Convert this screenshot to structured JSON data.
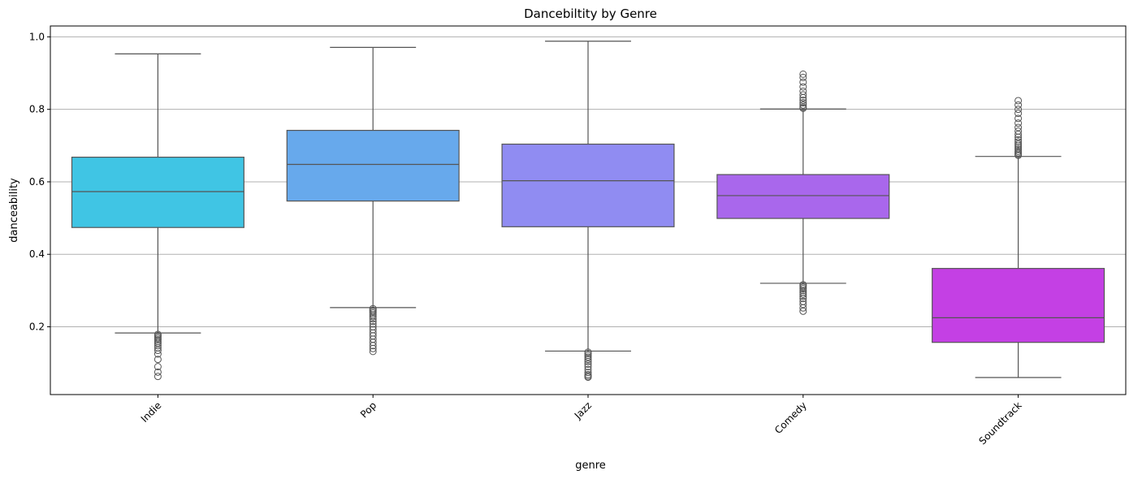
{
  "chart_data": {
    "type": "box",
    "title": "Dancebiltity by Genre",
    "xlabel": "genre",
    "ylabel": "danceability",
    "ylim": [
      0.013,
      1.03
    ],
    "yticks": [
      0.2,
      0.4,
      0.6,
      0.8,
      1.0
    ],
    "ytick_labels": [
      "0.2",
      "0.4",
      "0.6",
      "0.8",
      "1.0"
    ],
    "grid": "y",
    "categories": [
      "Indie",
      "Pop",
      "Jazz",
      "Comedy",
      "Soundtrack"
    ],
    "boxes": [
      {
        "category": "Indie",
        "color": "#40c5e4",
        "whisker_low": 0.183,
        "q1": 0.474,
        "median": 0.573,
        "q3": 0.668,
        "whisker_high": 0.953,
        "outliers": [
          0.179,
          0.176,
          0.172,
          0.168,
          0.164,
          0.159,
          0.154,
          0.148,
          0.142,
          0.135,
          0.125,
          0.11,
          0.09,
          0.075,
          0.063
        ]
      },
      {
        "category": "Pop",
        "color": "#67a9ec",
        "whisker_low": 0.253,
        "q1": 0.547,
        "median": 0.648,
        "q3": 0.742,
        "whisker_high": 0.971,
        "outliers": [
          0.25,
          0.246,
          0.242,
          0.238,
          0.233,
          0.228,
          0.222,
          0.215,
          0.208,
          0.2,
          0.192,
          0.183,
          0.175,
          0.166,
          0.157,
          0.148,
          0.14,
          0.132
        ]
      },
      {
        "category": "Jazz",
        "color": "#908cf2",
        "whisker_low": 0.133,
        "q1": 0.476,
        "median": 0.603,
        "q3": 0.704,
        "whisker_high": 0.988,
        "outliers": [
          0.13,
          0.126,
          0.121,
          0.116,
          0.11,
          0.104,
          0.097,
          0.09,
          0.082,
          0.074,
          0.068,
          0.064,
          0.061
        ]
      },
      {
        "category": "Comedy",
        "color": "#a967ec",
        "whisker_low": 0.32,
        "q1": 0.499,
        "median": 0.562,
        "q3": 0.62,
        "whisker_high": 0.801,
        "outliers": [
          0.897,
          0.888,
          0.875,
          0.862,
          0.85,
          0.84,
          0.832,
          0.825,
          0.818,
          0.812,
          0.806,
          0.803,
          0.316,
          0.313,
          0.309,
          0.305,
          0.3,
          0.295,
          0.29,
          0.284,
          0.278,
          0.27,
          0.262,
          0.252,
          0.243
        ]
      },
      {
        "category": "Soundtrack",
        "color": "#c440e4",
        "whisker_low": 0.06,
        "q1": 0.157,
        "median": 0.225,
        "q3": 0.361,
        "whisker_high": 0.67,
        "outliers": [
          0.824,
          0.812,
          0.8,
          0.789,
          0.775,
          0.762,
          0.75,
          0.74,
          0.731,
          0.723,
          0.716,
          0.71,
          0.704,
          0.699,
          0.694,
          0.689,
          0.684,
          0.68,
          0.676,
          0.673
        ]
      }
    ]
  }
}
